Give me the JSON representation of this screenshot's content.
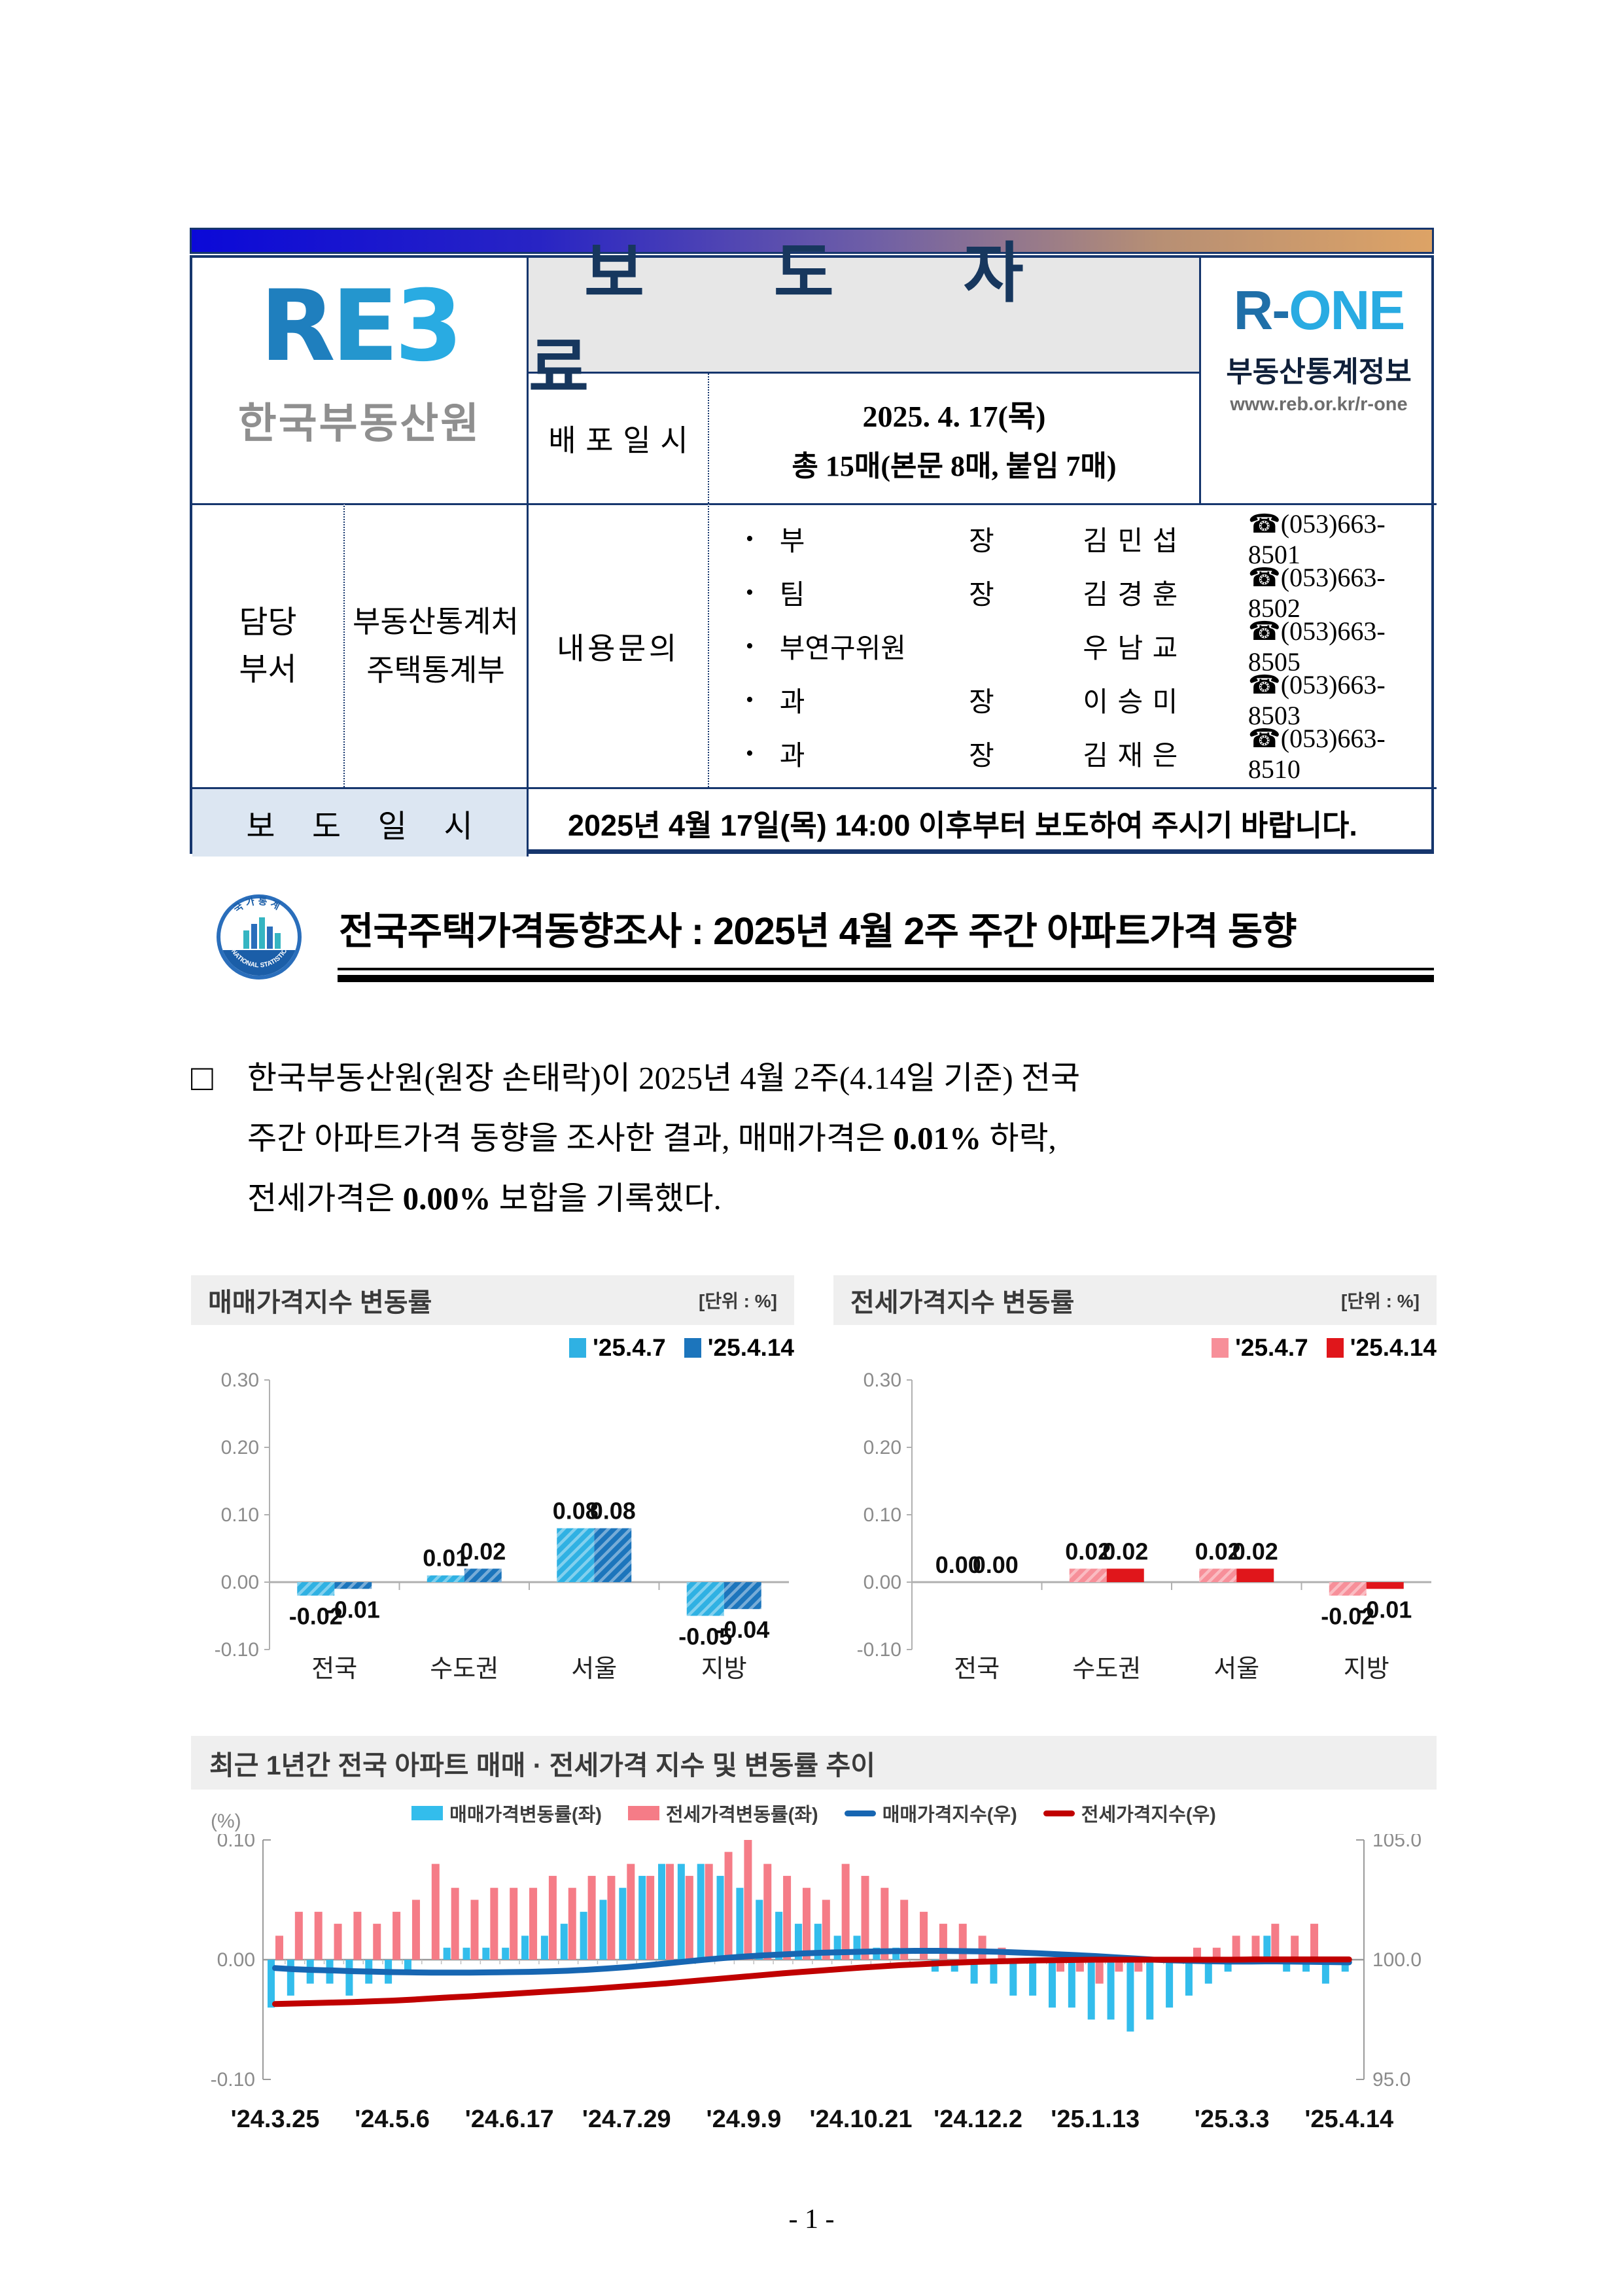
{
  "header": {
    "reb_logo": {
      "part1": "R",
      "part2": "E",
      "part3": "3",
      "org": "한국부동산원"
    },
    "press_title": "보 도 자 료",
    "r_one": {
      "logo_left": "R-",
      "logo_right": "ONE",
      "line1": "부동산통계정보",
      "line2": "www.reb.or.kr/r-one"
    },
    "release": {
      "label": "배포일시",
      "date": "2025. 4. 17(목)",
      "pages": "총 15매(본문 8매, 붙임 7매)"
    },
    "dept": {
      "label_line1": "담당",
      "label_line2": "부서",
      "value_line1": "부동산통계처",
      "value_line2": "주택통계부"
    },
    "inquiry_label": "내용문의",
    "contacts": [
      {
        "bullet": "•",
        "title": "부 장",
        "name": "김 민 섭",
        "phone": "☎(053)663-8501"
      },
      {
        "bullet": "•",
        "title": "팀 장",
        "name": "김 경 훈",
        "phone": "☎(053)663-8502"
      },
      {
        "bullet": "•",
        "title": "부연구위원",
        "name": "우 남 교",
        "phone": "☎(053)663-8505"
      },
      {
        "bullet": "•",
        "title": "과 장",
        "name": "이 승 미",
        "phone": "☎(053)663-8503"
      },
      {
        "bullet": "•",
        "title": "과 장",
        "name": "김 재 은",
        "phone": "☎(053)663-8510"
      }
    ],
    "embargo": {
      "label": "보 도 일 시",
      "bold": "2025년 4월 17일(목) 14:00 이후",
      "rest": "부터 보도하여 주시기 바랍니다."
    }
  },
  "emblem": {
    "top_text": "국 가 통 계",
    "bottom_text": "NATIONAL STATISTICS"
  },
  "doc_title": "전국주택가격동향조사 : 2025년 4월 2주 주간 아파트가격 동향",
  "body": {
    "bullet": "□",
    "seg1": "한국부동산원(원장 손태락)이 2025년 4월 2주(4.14일 기준) 전국\n주간 아파트가격 동향을 조사한 결과, 매매가격은 ",
    "bold1": "0.01%",
    "seg2": " 하락,\n전세가격은 ",
    "bold2": "0.00%",
    "seg3": " 보합을 기록했다."
  },
  "chart_data": [
    {
      "type": "bar",
      "title": "매매가격지수 변동률",
      "unit": "[단위 : %]",
      "categories": [
        "전국",
        "수도권",
        "서울",
        "지방"
      ],
      "series": [
        {
          "name": "'25.4.7",
          "color": "#2FB1E3",
          "hatch": true,
          "values": [
            -0.02,
            0.01,
            0.08,
            -0.05
          ]
        },
        {
          "name": "'25.4.14",
          "color": "#1C75BC",
          "hatch": true,
          "values": [
            -0.01,
            0.02,
            0.08,
            -0.04
          ]
        }
      ],
      "ylim": [
        -0.1,
        0.3
      ],
      "yticks": [
        "0.30",
        "0.20",
        "0.10",
        "0.00",
        "-0.10"
      ]
    },
    {
      "type": "bar",
      "title": "전세가격지수 변동률",
      "unit": "[단위 : %]",
      "categories": [
        "전국",
        "수도권",
        "서울",
        "지방"
      ],
      "series": [
        {
          "name": "'25.4.7",
          "color": "#F78F99",
          "hatch": true,
          "values": [
            0.0,
            0.02,
            0.02,
            -0.02
          ]
        },
        {
          "name": "'25.4.14",
          "color": "#E0161B",
          "hatch": false,
          "values": [
            0.0,
            0.02,
            0.02,
            -0.01
          ]
        }
      ],
      "ylim": [
        -0.1,
        0.3
      ],
      "yticks": [
        "0.30",
        "0.20",
        "0.10",
        "0.00",
        "-0.10"
      ]
    },
    {
      "type": "combo",
      "title": "최근 1년간 전국 아파트 매매 · 전세가격 지수 및 변동률 추이",
      "left_axis_label": "(%)",
      "left_yticks": [
        "0.10",
        "0.00",
        "-0.10"
      ],
      "right_yticks": [
        "105.0",
        "100.0",
        "95.0"
      ],
      "left_ylim": [
        -0.1,
        0.1
      ],
      "right_ylim": [
        95.0,
        105.0
      ],
      "x_tick_labels": [
        "'24.3.25",
        "'24.5.6",
        "'24.6.17",
        "'24.7.29",
        "'24.9.9",
        "'24.10.21",
        "'24.12.2",
        "'25.1.13",
        "'25.3.3",
        "'25.4.14"
      ],
      "x_tick_index": [
        0,
        6,
        12,
        18,
        24,
        30,
        36,
        42,
        49,
        55
      ],
      "series": [
        {
          "name": "매매가격변동률(좌)",
          "kind": "bar",
          "axis": "left",
          "color": "#33BDEC",
          "values": [
            -0.04,
            -0.03,
            -0.02,
            -0.02,
            -0.03,
            -0.02,
            -0.02,
            -0.01,
            0.0,
            0.01,
            0.01,
            0.01,
            0.01,
            0.02,
            0.02,
            0.03,
            0.04,
            0.05,
            0.06,
            0.07,
            0.08,
            0.08,
            0.08,
            0.07,
            0.06,
            0.05,
            0.04,
            0.03,
            0.03,
            0.02,
            0.02,
            0.01,
            0.01,
            0.0,
            -0.01,
            -0.01,
            -0.02,
            -0.02,
            -0.03,
            -0.03,
            -0.04,
            -0.04,
            -0.05,
            -0.05,
            -0.06,
            -0.05,
            -0.04,
            -0.03,
            -0.02,
            -0.01,
            0.0,
            0.02,
            -0.01,
            -0.01,
            -0.02,
            -0.01
          ]
        },
        {
          "name": "전세가격변동률(좌)",
          "kind": "bar",
          "axis": "left",
          "color": "#F57C87",
          "values": [
            0.02,
            0.04,
            0.04,
            0.03,
            0.04,
            0.03,
            0.04,
            0.05,
            0.08,
            0.06,
            0.05,
            0.06,
            0.06,
            0.06,
            0.07,
            0.06,
            0.07,
            0.07,
            0.08,
            0.07,
            0.08,
            0.07,
            0.08,
            0.09,
            0.1,
            0.08,
            0.07,
            0.06,
            0.05,
            0.08,
            0.07,
            0.06,
            0.05,
            0.04,
            0.03,
            0.03,
            0.02,
            0.01,
            0.0,
            0.0,
            -0.01,
            -0.01,
            -0.02,
            -0.01,
            -0.01,
            0.0,
            0.0,
            0.01,
            0.01,
            0.02,
            0.02,
            0.03,
            0.02,
            0.03,
            0.0,
            0.0
          ]
        },
        {
          "name": "매매가격지수(우)",
          "kind": "line",
          "axis": "right",
          "color": "#1766B2",
          "values": [
            99.65,
            99.6,
            99.57,
            99.55,
            99.52,
            99.5,
            99.48,
            99.47,
            99.46,
            99.46,
            99.46,
            99.47,
            99.48,
            99.49,
            99.51,
            99.54,
            99.58,
            99.63,
            99.69,
            99.76,
            99.84,
            99.92,
            100.0,
            100.07,
            100.13,
            100.18,
            100.22,
            100.26,
            100.29,
            100.31,
            100.33,
            100.35,
            100.36,
            100.37,
            100.37,
            100.36,
            100.35,
            100.33,
            100.3,
            100.27,
            100.23,
            100.19,
            100.15,
            100.1,
            100.05,
            100.0,
            99.97,
            99.95,
            99.93,
            99.92,
            99.92,
            99.93,
            99.92,
            99.91,
            99.9,
            99.89
          ]
        },
        {
          "name": "전세가격지수(우)",
          "kind": "line",
          "axis": "right",
          "color": "#C00000",
          "values": [
            98.15,
            98.17,
            98.19,
            98.21,
            98.23,
            98.26,
            98.29,
            98.33,
            98.38,
            98.43,
            98.47,
            98.52,
            98.57,
            98.62,
            98.67,
            98.72,
            98.77,
            98.83,
            98.89,
            98.95,
            99.01,
            99.08,
            99.15,
            99.22,
            99.29,
            99.36,
            99.43,
            99.49,
            99.55,
            99.61,
            99.67,
            99.72,
            99.77,
            99.81,
            99.85,
            99.88,
            99.91,
            99.93,
            99.95,
            99.97,
            99.98,
            99.99,
            100.0,
            100.0,
            100.0,
            100.0,
            100.0,
            100.0,
            100.0,
            100.0,
            100.01,
            100.01,
            100.01,
            100.01,
            100.01,
            100.01
          ]
        }
      ]
    }
  ],
  "footer": "- 1 -"
}
